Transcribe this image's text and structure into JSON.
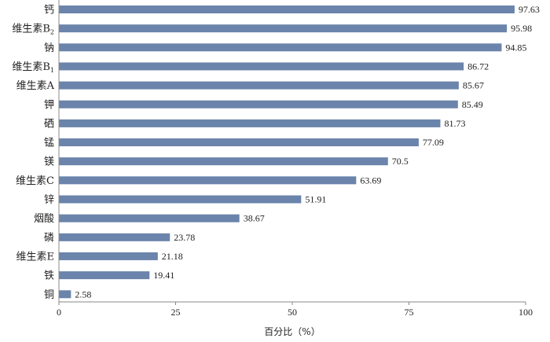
{
  "chart_data": {
    "type": "bar",
    "orientation": "horizontal",
    "categories": [
      {
        "label": "钙",
        "sub": ""
      },
      {
        "label": "维生素B",
        "sub": "2"
      },
      {
        "label": "钠",
        "sub": ""
      },
      {
        "label": "维生素B",
        "sub": "1"
      },
      {
        "label": "维生素A",
        "sub": ""
      },
      {
        "label": "钾",
        "sub": ""
      },
      {
        "label": "硒",
        "sub": ""
      },
      {
        "label": "锰",
        "sub": ""
      },
      {
        "label": "镁",
        "sub": ""
      },
      {
        "label": "维生素C",
        "sub": ""
      },
      {
        "label": "锌",
        "sub": ""
      },
      {
        "label": "烟酸",
        "sub": ""
      },
      {
        "label": "磷",
        "sub": ""
      },
      {
        "label": "维生素E",
        "sub": ""
      },
      {
        "label": "铁",
        "sub": ""
      },
      {
        "label": "铜",
        "sub": ""
      }
    ],
    "values": [
      97.63,
      95.98,
      94.85,
      86.72,
      85.67,
      85.49,
      81.73,
      77.09,
      70.5,
      63.69,
      51.91,
      38.67,
      23.78,
      21.18,
      19.41,
      2.58
    ],
    "value_labels": [
      "97.63",
      "95.98",
      "94.85",
      "86.72",
      "85.67",
      "85.49",
      "81.73",
      "77.09",
      "70.5",
      "63.69",
      "51.91",
      "38.67",
      "23.78",
      "21.18",
      "19.41",
      "2.58"
    ],
    "xlabel": "百分比（%）",
    "xlim": [
      0,
      100
    ],
    "xticks": [
      0,
      25,
      50,
      75,
      100
    ],
    "xtick_labels": [
      "0",
      "25",
      "50",
      "75",
      "100"
    ],
    "bar_color": "#6b84ab",
    "axis_color": "#888888",
    "grid": false
  }
}
